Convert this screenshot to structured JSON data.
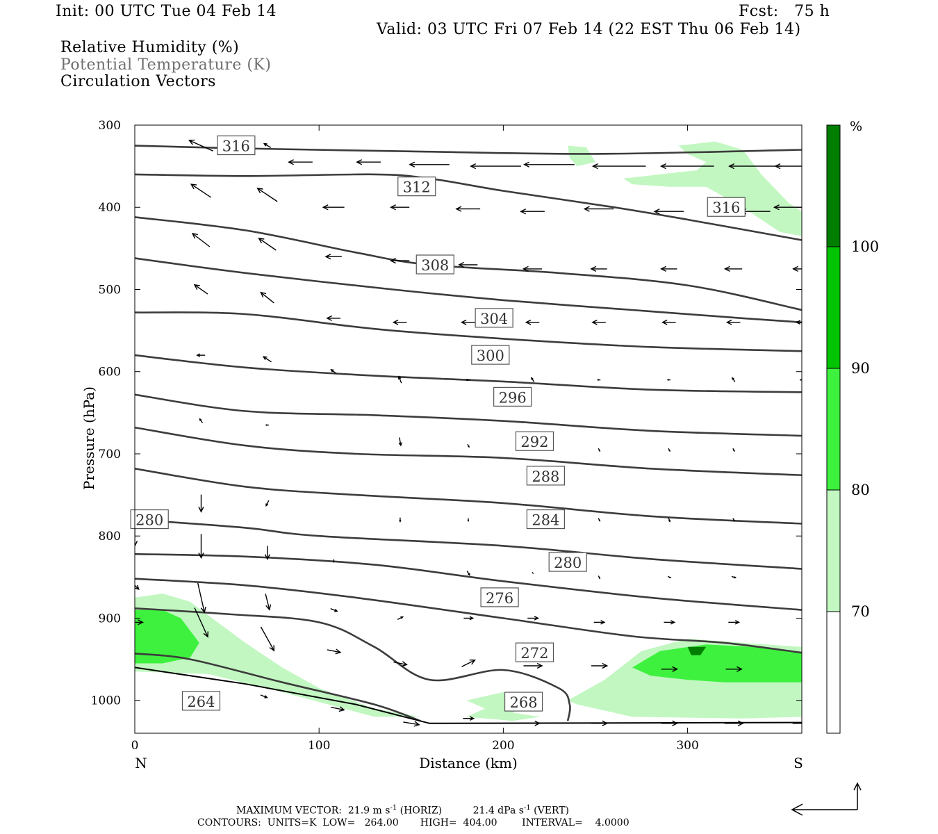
{
  "header": {
    "init": "Init: 00 UTC Tue 04 Feb 14",
    "fcst": "Fcst:   75 h",
    "valid": "Valid: 03 UTC Fri 07 Feb 14 (22 EST Thu 06 Feb 14)",
    "field1": "Relative Humidity (%)",
    "field2": "Potential Temperature (K)",
    "field3": "Circulation Vectors"
  },
  "colors": {
    "rh70": "#c2f7c2",
    "rh80": "#3ef13e",
    "rh90": "#00c400",
    "rh100": "#007e00",
    "theta_line": "#3c3c3c",
    "vector": "#000000"
  },
  "chart_data": {
    "type": "cross-section",
    "xlabel": "Distance (km)",
    "ylabel": "Pressure (hPa)",
    "xlim": [
      0,
      362
    ],
    "ylim": [
      300,
      1040
    ],
    "x_ticks": [
      "0",
      "100",
      "200",
      "300"
    ],
    "y_ticks": [
      "300",
      "400",
      "500",
      "600",
      "700",
      "800",
      "900",
      "1000"
    ],
    "left_end_label": "N",
    "right_end_label": "S",
    "colorbar": {
      "unit": "%",
      "levels": [
        "70",
        "80",
        "90",
        "100"
      ],
      "colors": [
        "#c2f7c2",
        "#3ef13e",
        "#00c400",
        "#007e00"
      ]
    },
    "isentropes": [
      {
        "theta": 316,
        "points": [
          [
            0,
            325
          ],
          [
            50,
            328
          ],
          [
            150,
            332
          ],
          [
            250,
            335
          ],
          [
            362,
            330
          ]
        ]
      },
      {
        "theta": 312,
        "points": [
          [
            0,
            360
          ],
          [
            60,
            362
          ],
          [
            130,
            360
          ],
          [
            160,
            365
          ],
          [
            200,
            380
          ],
          [
            260,
            400
          ],
          [
            300,
            415
          ],
          [
            362,
            440
          ]
        ]
      },
      {
        "theta": 308,
        "points": [
          [
            0,
            412
          ],
          [
            60,
            428
          ],
          [
            120,
            455
          ],
          [
            160,
            470
          ],
          [
            230,
            480
          ],
          [
            300,
            495
          ],
          [
            362,
            525
          ]
        ]
      },
      {
        "theta": 304,
        "points": [
          [
            0,
            462
          ],
          [
            60,
            480
          ],
          [
            140,
            500
          ],
          [
            200,
            513
          ],
          [
            270,
            525
          ],
          [
            330,
            535
          ],
          [
            362,
            540
          ]
        ]
      },
      {
        "theta": 300,
        "points": [
          [
            0,
            528
          ],
          [
            60,
            530
          ],
          [
            130,
            548
          ],
          [
            200,
            560
          ],
          [
            280,
            570
          ],
          [
            362,
            575
          ]
        ]
      },
      {
        "theta": 296,
        "points": [
          [
            0,
            580
          ],
          [
            60,
            595
          ],
          [
            130,
            605
          ],
          [
            200,
            612
          ],
          [
            280,
            622
          ],
          [
            362,
            625
          ]
        ]
      },
      {
        "theta": 292,
        "points": [
          [
            0,
            628
          ],
          [
            60,
            648
          ],
          [
            130,
            653
          ],
          [
            200,
            660
          ],
          [
            280,
            672
          ],
          [
            362,
            678
          ]
        ]
      },
      {
        "theta": 288,
        "points": [
          [
            0,
            668
          ],
          [
            60,
            690
          ],
          [
            120,
            700
          ],
          [
            200,
            705
          ],
          [
            280,
            718
          ],
          [
            362,
            726
          ]
        ]
      },
      {
        "theta": 284,
        "points": [
          [
            0,
            718
          ],
          [
            60,
            740
          ],
          [
            120,
            750
          ],
          [
            200,
            760
          ],
          [
            280,
            776
          ],
          [
            362,
            785
          ]
        ]
      },
      {
        "theta": 280,
        "points": [
          [
            0,
            780
          ],
          [
            60,
            790
          ],
          [
            100,
            800
          ],
          [
            200,
            812
          ],
          [
            280,
            828
          ],
          [
            362,
            840
          ]
        ]
      },
      {
        "theta": 276,
        "points": [
          [
            0,
            822
          ],
          [
            60,
            825
          ],
          [
            130,
            835
          ],
          [
            200,
            855
          ],
          [
            280,
            875
          ],
          [
            362,
            890
          ]
        ]
      },
      {
        "theta": 272,
        "points": [
          [
            0,
            852
          ],
          [
            60,
            860
          ],
          [
            120,
            875
          ],
          [
            200,
            900
          ],
          [
            270,
            922
          ],
          [
            320,
            930
          ],
          [
            362,
            942
          ]
        ]
      },
      {
        "theta": 268,
        "points": [
          [
            0,
            888
          ],
          [
            50,
            895
          ],
          [
            100,
            905
          ],
          [
            130,
            935
          ],
          [
            160,
            975
          ],
          [
            200,
            963
          ],
          [
            230,
            985
          ],
          [
            236,
            1005
          ],
          [
            235,
            1025
          ]
        ]
      },
      {
        "theta": 264,
        "points": [
          [
            0,
            943
          ],
          [
            30,
            950
          ],
          [
            80,
            978
          ],
          [
            130,
            1005
          ],
          [
            155,
            1025
          ]
        ]
      }
    ],
    "contour_labels": [
      "316",
      "312",
      "308",
      "304",
      "300",
      "296",
      "292",
      "288",
      "284",
      "280",
      "280",
      "276",
      "272",
      "268",
      "264",
      "316"
    ],
    "vectors_note": "circulation vectors (u, omega)",
    "max_vector_label": "MAXIMUM VECTOR:",
    "max_vector_horiz": "21.9 m s",
    "max_vector_horiz_tail": " (HORIZ)",
    "max_vector_vert": "21.4 dPa s",
    "max_vector_vert_tail": " (VERT)",
    "exponent": "-1",
    "contours_info": "CONTOURS:  UNITS=K  LOW=   264.00       HIGH=  404.00        INTERVAL=    4.0000"
  }
}
